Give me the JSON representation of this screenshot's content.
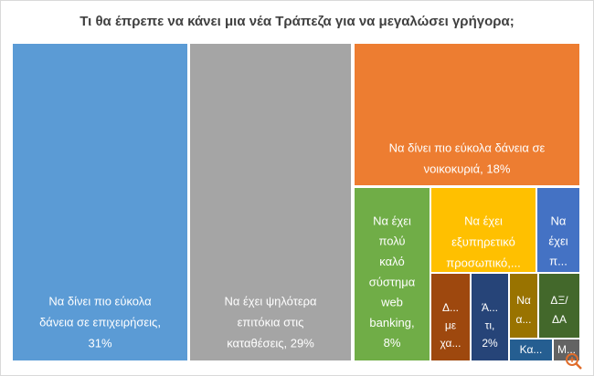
{
  "chart_data": {
    "type": "treemap",
    "title": "Τι θα έπρεπε να κάνει μια νέα Τράπεζα για να μεγαλώσει γρήγορα;",
    "labels": [
      [
        "Να δίνει πιο εύκολα",
        "δάνεια σε επιχειρήσεις,",
        "31%"
      ],
      [
        "Να έχει ψηλότερα",
        "επιτόκια στις",
        "καταθέσεις, 29%"
      ],
      [
        "Να δίνει πιο εύκολα δάνεια σε",
        "νοικοκυριά, 18%"
      ],
      [
        "Να έχει",
        "πολύ",
        "καλό",
        "σύστημα",
        "web",
        "banking,",
        "8%"
      ],
      [
        "Να έχει",
        "εξυπηρετικό",
        "προσωπικό,..."
      ],
      [
        "Να",
        "έχει",
        "π..."
      ],
      [
        "Δ...",
        "με",
        "χα..."
      ],
      [
        "Ά...",
        "τι,",
        "2%"
      ],
      [
        "Να",
        "α..."
      ],
      [
        "ΔΞ/",
        "ΔΑ"
      ],
      [
        "Κα..."
      ],
      [
        "Μ..."
      ]
    ],
    "values": [
      31,
      29,
      18,
      8,
      5,
      2,
      2,
      2,
      1,
      1,
      1,
      0.5
    ],
    "colors": [
      "#5b9bd5",
      "#a5a5a5",
      "#ed7d31",
      "#70ad47",
      "#ffc000",
      "#4472c4",
      "#9e480e",
      "#264478",
      "#997300",
      "#43682b",
      "#255e91",
      "#636363"
    ]
  }
}
